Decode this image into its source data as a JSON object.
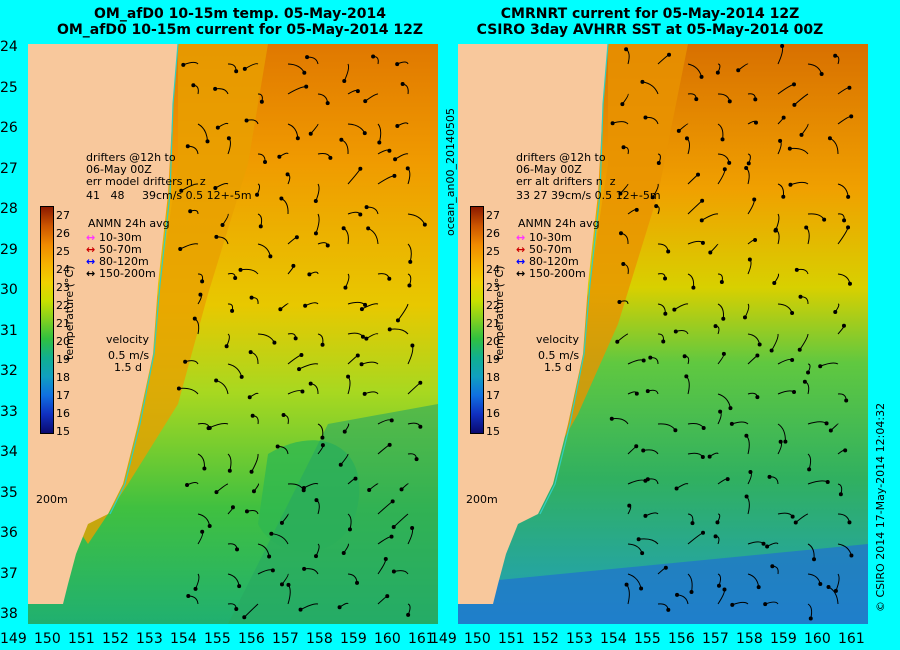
{
  "titles": {
    "left_line1": "OM_afD0 10-15m temp. 05-May-2014",
    "left_line2": "OM_afD0 10-15m current for 05-May-2014 12Z",
    "right_line1": "CMRNRT current for 05-May-2014 12Z",
    "right_line2": "CSIRO 3day AVHRR SST at 05-May-2014 00Z"
  },
  "axes": {
    "lat_labels": [
      "24",
      "25",
      "26",
      "27",
      "28",
      "29",
      "30",
      "31",
      "32",
      "33",
      "34",
      "35",
      "36",
      "37",
      "38"
    ],
    "lon_labels": [
      "149",
      "150",
      "151",
      "152",
      "153",
      "154",
      "155",
      "156",
      "157",
      "158",
      "159",
      "160",
      "161"
    ]
  },
  "left_panel": {
    "drifters_text": "drifters @12h to\n06-May 00Z",
    "err_line": "err model drifters n  z",
    "err_values": "41   48     39cm/s 0.5 12+-5m",
    "legend_title": "ANMN 24h avg",
    "legend": [
      {
        "label": "10-30m",
        "color": "#ff33ff"
      },
      {
        "label": "50-70m",
        "color": "#cc0000"
      },
      {
        "label": "80-120m",
        "color": "#0000ff"
      },
      {
        "label": "150-200m",
        "color": "#000000"
      }
    ],
    "velocity_label": "velocity",
    "velocity_scale": "0.5 m/s",
    "velocity_time": "1.5 d",
    "isobath_label": "200m"
  },
  "right_panel": {
    "drifters_text": "drifters @12h to\n06-May 00Z",
    "err_line": "err alt drifters n  z",
    "err_values": "33 27 39cm/s 0.5 12+-5m",
    "legend_title": "ANMN 24h avg",
    "legend": [
      {
        "label": "10-30m",
        "color": "#ff33ff"
      },
      {
        "label": "50-70m",
        "color": "#cc0000"
      },
      {
        "label": "80-120m",
        "color": "#0000ff"
      },
      {
        "label": "150-200m",
        "color": "#000000"
      }
    ],
    "velocity_label": "velocity",
    "velocity_scale": "0.5 m/s",
    "velocity_time": "1.5 d",
    "isobath_label": "200m"
  },
  "colorbar": {
    "ticks": [
      "27",
      "26",
      "25",
      "24",
      "23",
      "22",
      "21",
      "20",
      "19",
      "18",
      "17",
      "16",
      "15"
    ],
    "label": "temperature (°C)",
    "stops": [
      "#8b1a00",
      "#cc5500",
      "#f08a00",
      "#f5b000",
      "#f0d000",
      "#c8e000",
      "#80d020",
      "#30c040",
      "#10b090",
      "#10a0c0",
      "#1070e0",
      "#1030c0",
      "#0a0a70"
    ]
  },
  "side_text": {
    "ocean_tag": "ocean_an00_20140505",
    "credit": "© CSIRO 2014   17-May-2014 12:04:32"
  }
}
